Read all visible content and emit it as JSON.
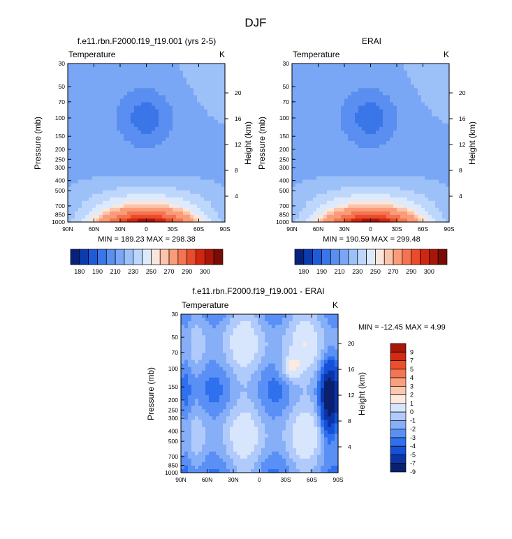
{
  "title": "DJF",
  "palettes": {
    "full": [
      "#08217a",
      "#0a3cad",
      "#1f5ad9",
      "#3a76e8",
      "#5a8ef0",
      "#7aa7f5",
      "#9cc0f8",
      "#bdd6fb",
      "#ddeafd",
      "#fbe6da",
      "#fcc4aa",
      "#fa9c78",
      "#f47350",
      "#ea4c2b",
      "#d0260f",
      "#a8160a",
      "#7a0c05"
    ],
    "diff": [
      "#08206e",
      "#0b34a6",
      "#1550d6",
      "#2f70ee",
      "#5a90f5",
      "#86aff8",
      "#b0cbfb",
      "#d8e6fd",
      "#fde9dd",
      "#fcc9ae",
      "#f9a080",
      "#f47553",
      "#eb4f2c",
      "#d22b0f",
      "#a9160a"
    ]
  },
  "chart_data": [
    {
      "type": "heatmap",
      "title": "f.e11.rbn.F2000.f19_f19.001 (yrs 2-5)",
      "left_label": "Temperature",
      "right_label": "K",
      "ylabel": "Pressure (mb)",
      "ylabel_right": "Height (km)",
      "x_ticks": [
        "90N",
        "60N",
        "30N",
        "0",
        "30S",
        "60S",
        "90S"
      ],
      "y_ticks": [
        "30",
        "50",
        "70",
        "100",
        "150",
        "200",
        "250",
        "300",
        "400",
        "500",
        "700",
        "850",
        "1000"
      ],
      "y2_ticks": [
        "20",
        "16",
        "12",
        "8",
        "4"
      ],
      "stats_text": "MIN = 189.23  MAX = 298.38",
      "min": 189.23,
      "max": 298.38,
      "colorbar_labels": [
        "180",
        "190",
        "210",
        "230",
        "250",
        "270",
        "290",
        "300"
      ]
    },
    {
      "type": "heatmap",
      "title": "ERAI",
      "left_label": "Temperature",
      "right_label": "K",
      "ylabel": "Pressure (mb)",
      "ylabel_right": "Height (km)",
      "x_ticks": [
        "90N",
        "60N",
        "30N",
        "0",
        "30S",
        "60S",
        "90S"
      ],
      "y_ticks": [
        "30",
        "50",
        "70",
        "100",
        "150",
        "200",
        "250",
        "300",
        "400",
        "500",
        "700",
        "850",
        "1000"
      ],
      "y2_ticks": [
        "20",
        "16",
        "12",
        "8",
        "4"
      ],
      "stats_text": "MIN = 190.59  MAX = 299.48",
      "min": 190.59,
      "max": 299.48,
      "colorbar_labels": [
        "180",
        "190",
        "210",
        "230",
        "250",
        "270",
        "290",
        "300"
      ]
    },
    {
      "type": "heatmap",
      "title": "f.e11.rbn.F2000.f19_f19.001 - ERAI",
      "left_label": "Temperature",
      "right_label": "K",
      "ylabel": "Pressure (mb)",
      "ylabel_right": "Height (km)",
      "x_ticks": [
        "90N",
        "60N",
        "30N",
        "0",
        "30S",
        "60S",
        "90S"
      ],
      "y_ticks": [
        "30",
        "50",
        "70",
        "100",
        "150",
        "200",
        "250",
        "300",
        "400",
        "500",
        "700",
        "850",
        "1000"
      ],
      "y2_ticks": [
        "20",
        "16",
        "12",
        "8",
        "4"
      ],
      "stats_text": "MIN = -12.45  MAX =   4.99",
      "min": -12.45,
      "max": 4.99,
      "colorbar_labels": [
        "9",
        "7",
        "5",
        "4",
        "3",
        "2",
        "1",
        "0",
        "-1",
        "-2",
        "-3",
        "-4",
        "-5",
        "-7",
        "-9"
      ]
    }
  ]
}
